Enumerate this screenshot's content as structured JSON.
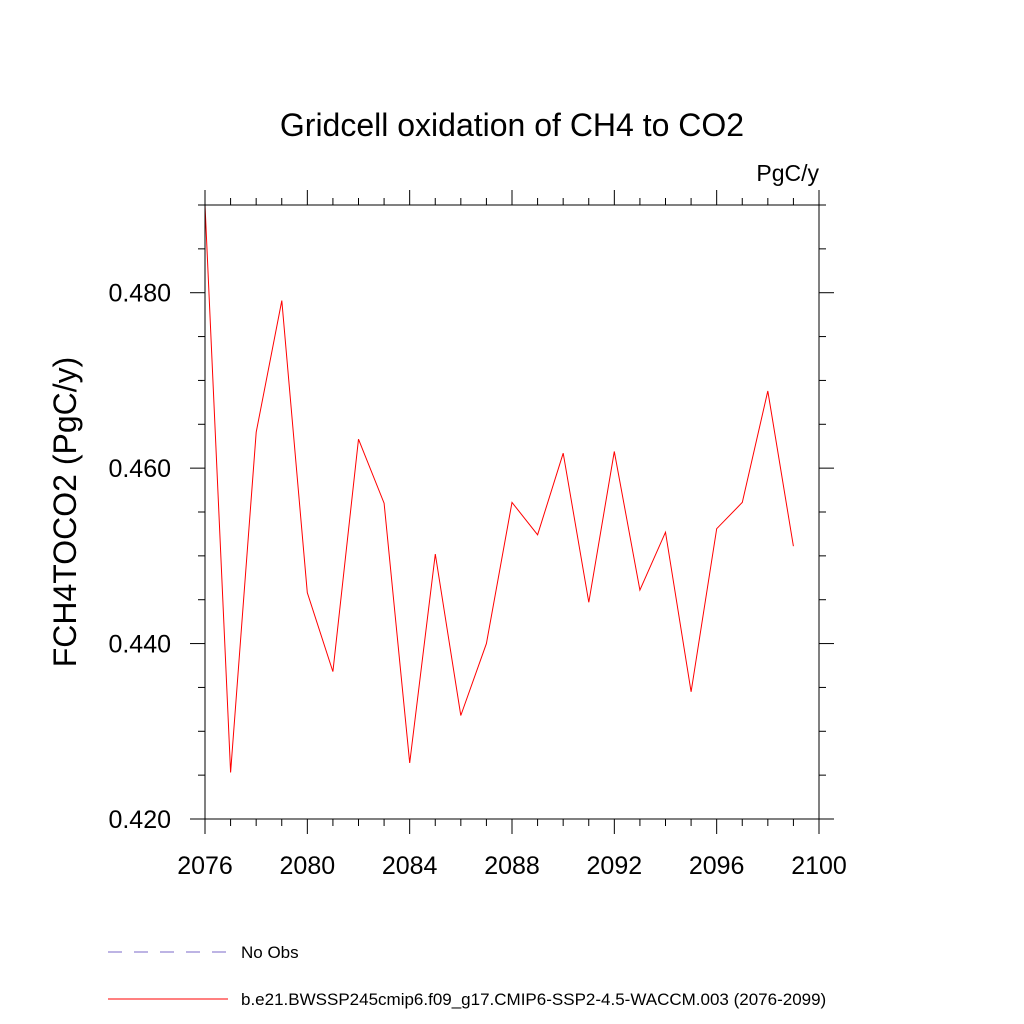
{
  "chart_data": {
    "type": "line",
    "title": "Gridcell oxidation of CH4 to CO2",
    "units": "PgC/y",
    "ylabel": "FCH4TOCO2  (PgC/y)",
    "xlabel": "",
    "xlim": [
      2076,
      2100
    ],
    "ylim": [
      0.42,
      0.49
    ],
    "x_ticks": [
      2076,
      2080,
      2084,
      2088,
      2092,
      2096,
      2100
    ],
    "x_tick_labels": [
      "2076",
      "2080",
      "2084",
      "2088",
      "2092",
      "2096",
      "2100"
    ],
    "y_ticks": [
      0.42,
      0.44,
      0.46,
      0.48
    ],
    "y_tick_labels": [
      "0.420",
      "0.440",
      "0.460",
      "0.480"
    ],
    "grid": false,
    "legend_position": "bottom",
    "series": [
      {
        "name": "b.e21.BWSSP245cmip6.f09_g17.CMIP6-SSP2-4.5-WACCM.003 (2076-2099)",
        "color": "#ff0000",
        "dash": "solid",
        "x": [
          2076,
          2077,
          2078,
          2079,
          2080,
          2081,
          2082,
          2083,
          2084,
          2085,
          2086,
          2087,
          2088,
          2089,
          2090,
          2091,
          2092,
          2093,
          2094,
          2095,
          2096,
          2097,
          2098,
          2099
        ],
        "values": [
          0.49,
          0.4253,
          0.4641,
          0.4791,
          0.4458,
          0.4368,
          0.4633,
          0.456,
          0.4264,
          0.4502,
          0.4318,
          0.44,
          0.4561,
          0.4524,
          0.4617,
          0.4447,
          0.4619,
          0.4461,
          0.4527,
          0.4345,
          0.4531,
          0.4561,
          0.4688,
          0.4511
        ]
      },
      {
        "name": "No Obs",
        "color": "#7b68c8",
        "dash": "dashed",
        "x": [],
        "values": []
      }
    ]
  }
}
